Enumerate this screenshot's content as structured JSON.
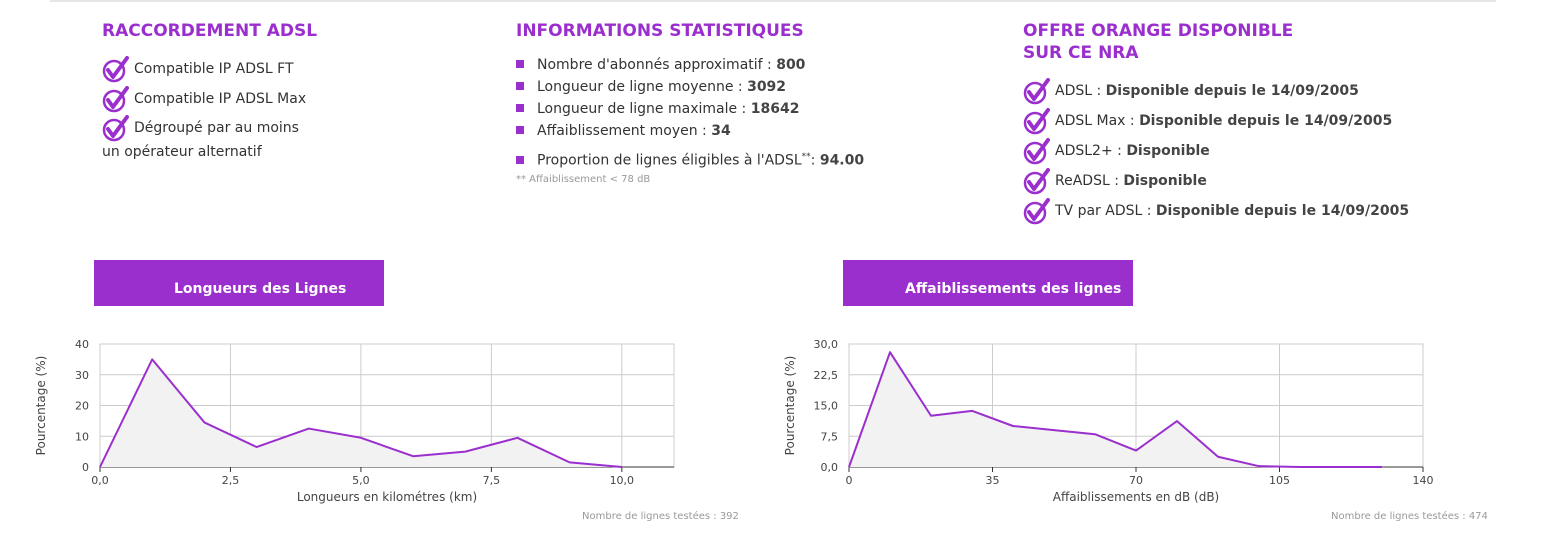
{
  "raccordement": {
    "title": "RACCORDEMENT ADSL",
    "items": [
      {
        "text": "Compatible IP ADSL FT"
      },
      {
        "text": "Compatible IP ADSL Max"
      }
    ],
    "degroupe_line1": "Dégroupé par au moins",
    "degroupe_line2": "un opérateur alternatif"
  },
  "stats": {
    "title": "INFORMATIONS STATISTIQUES",
    "items": [
      {
        "label": "Nombre d'abonnés approximatif : ",
        "value": "800"
      },
      {
        "label": "Longueur de ligne moyenne : ",
        "value": "3092"
      },
      {
        "label": "Longueur de ligne maximale : ",
        "value": "18642"
      },
      {
        "label": "Affaiblissement moyen : ",
        "value": "34"
      }
    ],
    "proportion_label": "Proportion de lignes éligibles à l'ADSL",
    "proportion_sup": "**",
    "proportion_sep": ": ",
    "proportion_value": "94.00",
    "footnote": "** Affaiblissement < 78 dB"
  },
  "offre": {
    "title_line1": "OFFRE ORANGE DISPONIBLE",
    "title_line2": "SUR CE NRA",
    "items": [
      {
        "label": "ADSL : ",
        "value": "Disponible depuis le 14/09/2005"
      },
      {
        "label": "ADSL Max : ",
        "value": "Disponible depuis le 14/09/2005"
      },
      {
        "label": "ADSL2+ : ",
        "value": "Disponible"
      },
      {
        "label": "ReADSL : ",
        "value": "Disponible"
      },
      {
        "label": "TV par ADSL : ",
        "value": "Disponible depuis le 14/09/2005"
      }
    ]
  },
  "colors": {
    "accent": "#9b2fce",
    "line": "#9b2fce",
    "area": "#f2f2f2",
    "grid": "#cccccc"
  },
  "chart_data": [
    {
      "type": "area",
      "title": "Longueurs des Lignes",
      "xlabel": "Longueurs en kilométres (km)",
      "ylabel": "Pourcentage (%)",
      "xlim": [
        0,
        11
      ],
      "ylim": [
        0,
        40
      ],
      "xticks": [
        0,
        2.5,
        5,
        7.5,
        10
      ],
      "xtick_labels": [
        "0,0",
        "2,5",
        "5,0",
        "7,5",
        "10,0"
      ],
      "yticks": [
        0,
        10,
        20,
        30,
        40
      ],
      "ytick_labels": [
        "0",
        "10",
        "20",
        "30",
        "40"
      ],
      "x": [
        0,
        1,
        2,
        3,
        4,
        5,
        6,
        7,
        8,
        9,
        10
      ],
      "values": [
        0,
        35,
        14.5,
        6.5,
        12.5,
        9.5,
        3.5,
        5,
        9.5,
        1.5,
        0
      ],
      "tested": "Nombre de lignes testées : 392"
    },
    {
      "type": "area",
      "title": "Affaiblissements des lignes",
      "xlabel": "Affaiblissements en dB (dB)",
      "ylabel": "Pourcentage (%)",
      "xlim": [
        0,
        140
      ],
      "ylim": [
        0,
        30
      ],
      "xticks": [
        0,
        35,
        70,
        105,
        140
      ],
      "xtick_labels": [
        "0",
        "35",
        "70",
        "105",
        "140"
      ],
      "yticks": [
        0,
        7.5,
        15,
        22.5,
        30
      ],
      "ytick_labels": [
        "0,0",
        "7,5",
        "15,0",
        "22,5",
        "30,0"
      ],
      "x": [
        0,
        10,
        20,
        30,
        40,
        50,
        60,
        70,
        80,
        90,
        100,
        110,
        120,
        130
      ],
      "values": [
        0,
        28,
        12.5,
        13.7,
        10,
        9,
        8,
        4,
        11.2,
        2.5,
        0.2,
        0,
        0,
        0
      ],
      "tested": "Nombre de lignes testées : 474"
    }
  ]
}
